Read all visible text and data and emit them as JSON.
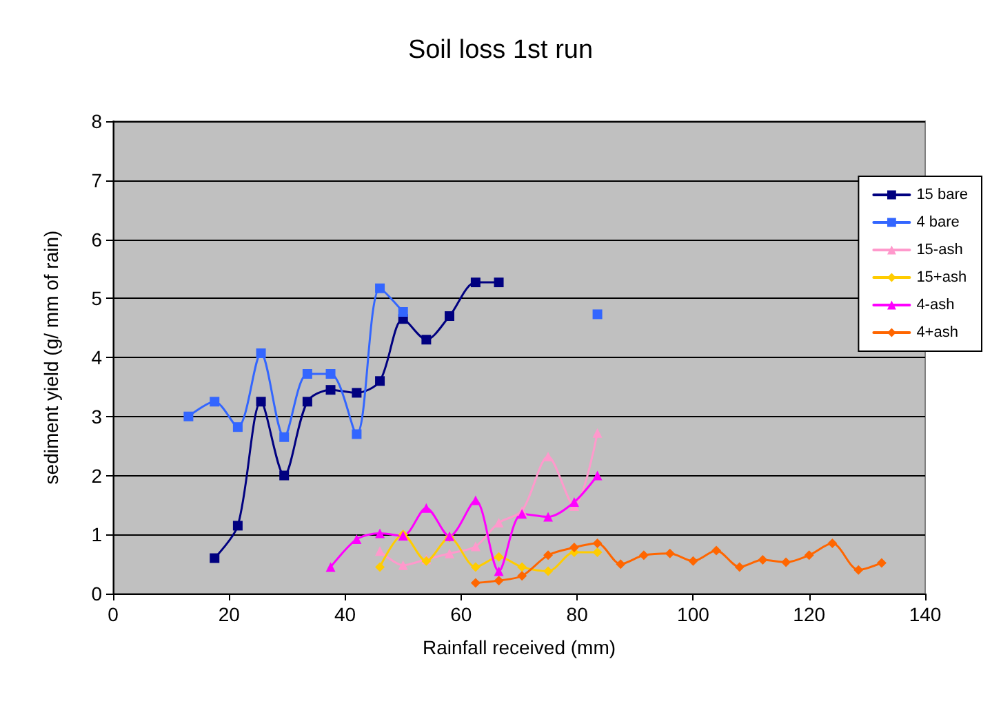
{
  "chart_data": {
    "type": "line",
    "title": "Soil loss 1st run",
    "xlabel": "Rainfall received (mm)",
    "ylabel": "sediment yield (g/ mm of rain)",
    "xlim": [
      0,
      140
    ],
    "xticks": [
      0,
      20,
      40,
      60,
      80,
      100,
      120,
      140
    ],
    "ylim": [
      0,
      8
    ],
    "yticks": [
      0,
      1,
      2,
      3,
      4,
      5,
      6,
      7,
      8
    ],
    "grid": "y",
    "legend": "right",
    "line_style": "solid",
    "series": [
      {
        "name": "15 bare",
        "color": "#000080",
        "marker": "square",
        "x": [
          17.5,
          21.5,
          25.5,
          29.5,
          33.5,
          37.5,
          42,
          46,
          50,
          54,
          58,
          62.5,
          66.5
        ],
        "values": [
          0.6,
          1.15,
          3.25,
          2.0,
          3.25,
          3.45,
          3.4,
          3.6,
          4.65,
          4.3,
          4.7,
          5.27,
          5.27
        ]
      },
      {
        "name": "4 bare",
        "color": "#3366ff",
        "marker": "square",
        "x": [
          13,
          17.5,
          21.5,
          25.5,
          29.5,
          33.5,
          37.5,
          42,
          46,
          50,
          66.5,
          83.5
        ],
        "values": [
          3.0,
          3.25,
          2.82,
          4.07,
          2.65,
          3.72,
          3.72,
          2.7,
          5.17,
          4.77,
          null,
          4.73
        ]
      },
      {
        "name": "15-ash",
        "color": "#ff99cc",
        "marker": "triangle",
        "x": [
          46,
          50,
          54,
          58,
          62.5,
          66.5,
          70.5,
          75,
          79.5,
          83.5
        ],
        "values": [
          0.72,
          0.48,
          0.58,
          0.68,
          0.8,
          1.2,
          1.4,
          2.32,
          1.48,
          2.72
        ]
      },
      {
        "name": "15+ash",
        "color": "#ffcc00",
        "marker": "diamond",
        "x": [
          46,
          50,
          54,
          58,
          62.5,
          66.5,
          70.5,
          75,
          79.5,
          83.5
        ],
        "values": [
          0.45,
          1.0,
          0.55,
          0.95,
          0.45,
          0.62,
          0.45,
          0.38,
          0.7,
          0.7
        ]
      },
      {
        "name": "4-ash",
        "color": "#ff00ff",
        "marker": "triangle",
        "x": [
          37.5,
          42,
          46,
          50,
          54,
          58,
          62.5,
          66.5,
          70.5,
          75,
          79.5,
          83.5
        ],
        "values": [
          0.45,
          0.92,
          1.02,
          0.98,
          1.45,
          0.97,
          1.58,
          0.38,
          1.35,
          1.3,
          1.55,
          2.0
        ]
      },
      {
        "name": "4+ash",
        "color": "#ff6600",
        "marker": "diamond",
        "x": [
          62.5,
          66.5,
          70.5,
          75,
          79.5,
          83.5,
          87.5,
          91.5,
          96,
          100,
          104,
          108,
          112,
          116,
          120,
          124,
          128.5,
          132.5
        ],
        "values": [
          0.18,
          0.22,
          0.3,
          0.65,
          0.78,
          0.85,
          0.5,
          0.65,
          0.68,
          0.55,
          0.73,
          0.45,
          0.57,
          0.53,
          0.65,
          0.85,
          0.4,
          0.52
        ]
      }
    ]
  }
}
